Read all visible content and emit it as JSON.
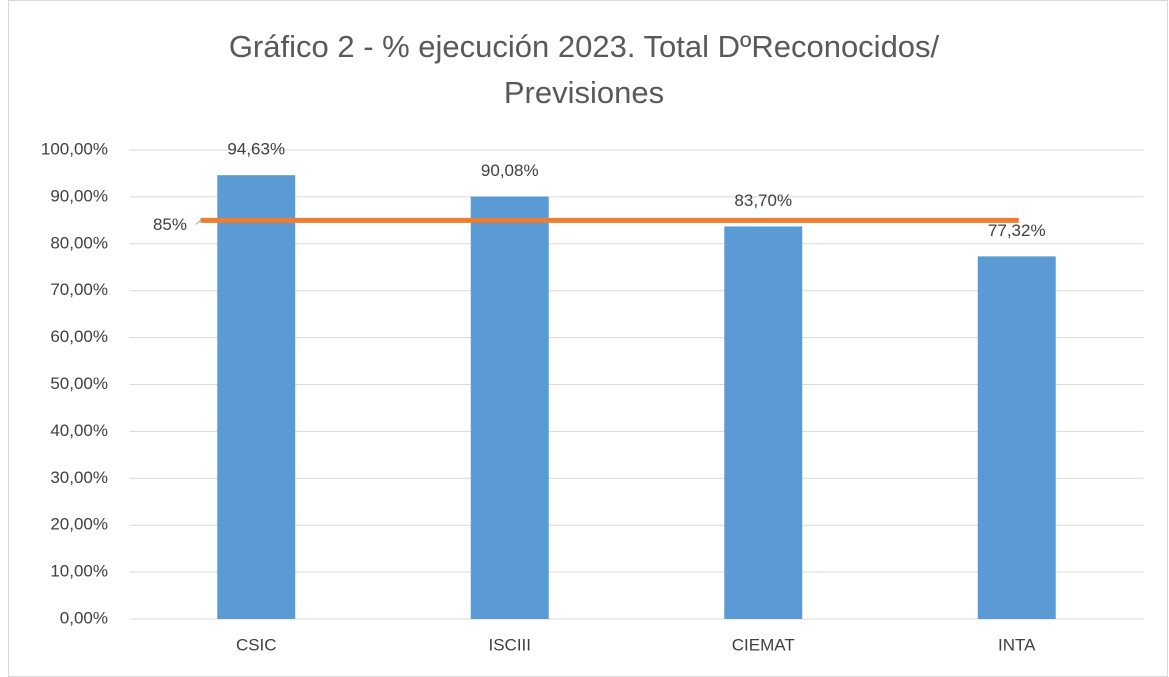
{
  "chart_data": {
    "type": "bar",
    "title": "Gráfico 2 - % ejecución 2023. Total DºReconocidos/ Previsiones",
    "categories": [
      "CSIC",
      "ISCIII",
      "CIEMAT",
      "INTA"
    ],
    "values": [
      94.63,
      90.08,
      83.7,
      77.32
    ],
    "value_labels": [
      "94,63%",
      "90,08%",
      "83,70%",
      "77,32%"
    ],
    "color": "#5b9bd5",
    "reference_line": {
      "value": 85,
      "label": "85%",
      "color": "#ed7d31"
    },
    "ylim": [
      0,
      100
    ],
    "yticks": [
      {
        "value": 0,
        "label": "0,00%"
      },
      {
        "value": 10,
        "label": "10,00%"
      },
      {
        "value": 20,
        "label": "20,00%"
      },
      {
        "value": 30,
        "label": "30,00%"
      },
      {
        "value": 40,
        "label": "40,00%"
      },
      {
        "value": 50,
        "label": "50,00%"
      },
      {
        "value": 60,
        "label": "60,00%"
      },
      {
        "value": 70,
        "label": "70,00%"
      },
      {
        "value": 80,
        "label": "80,00%"
      },
      {
        "value": 90,
        "label": "90,00%"
      },
      {
        "value": 100,
        "label": "100,00%"
      }
    ],
    "grid": true
  }
}
